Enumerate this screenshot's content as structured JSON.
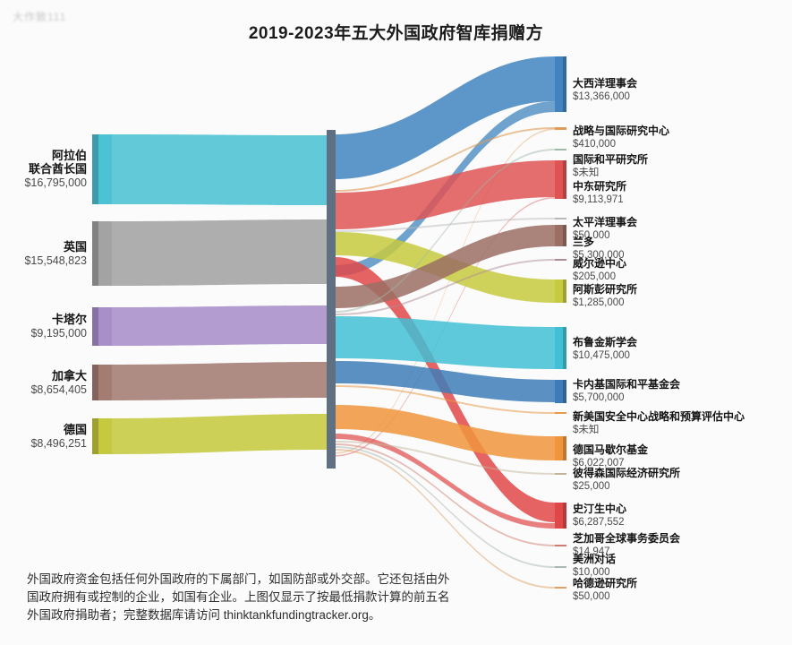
{
  "watermark": "大作致111",
  "footnote": {
    "lines": [
      "外国政府资金包括任何外国政府的下属部门，如国防部或外交部。它还包括由外",
      "国政府拥有或控制的企业，如国有企业。上图仅显示了按最低捐款计算的前五名",
      "外国政府捐助者；完整数据库请访问 thinktankfundingtracker.org。"
    ]
  },
  "chart_data": {
    "type": "sankey",
    "title": "2019-2023年五大外国政府智库捐赠方",
    "unit": "USD",
    "legend_position": "none",
    "layout_hint": "donor governments on left, unlabeled grey junction bar in middle, recipient think tanks on right; ribbons colored by donor on left half and by recipient on right half",
    "junction": {
      "label": "",
      "color": "#5e7081"
    },
    "sources": [
      {
        "id": "uae",
        "name": "阿拉伯联合酋长国",
        "name_lines": [
          "阿拉伯",
          "联合酋长国"
        ],
        "amount_label": "$16,795,000",
        "value": 16795000,
        "color": "#4cc2d4"
      },
      {
        "id": "uk",
        "name": "英国",
        "name_lines": [
          "英国"
        ],
        "amount_label": "$15,548,823",
        "value": 15548823,
        "color": "#a3a3a3"
      },
      {
        "id": "qatar",
        "name": "卡塔尔",
        "name_lines": [
          "卡塔尔"
        ],
        "amount_label": "$9,195,000",
        "value": 9195000,
        "color": "#a88fc9"
      },
      {
        "id": "canada",
        "name": "加拿大",
        "name_lines": [
          "加拿大"
        ],
        "amount_label": "$8,654,405",
        "value": 8654405,
        "color": "#a47c72"
      },
      {
        "id": "germany",
        "name": "德国",
        "name_lines": [
          "德国"
        ],
        "amount_label": "$8,496,251",
        "value": 8496251,
        "color": "#c5c93f"
      }
    ],
    "targets": [
      {
        "id": "atlantic-council",
        "name": "大西洋理事会",
        "amount_label": "$13,366,000",
        "value": 13366000,
        "color": "#4184bf"
      },
      {
        "id": "csis",
        "name": "战略与国际研究中心",
        "amount_label": "$410,000",
        "value": 410000,
        "color": "#dd9b55"
      },
      {
        "id": "international-peace-institute",
        "name": "国际和平研究所",
        "amount_label": "$未知",
        "value": null,
        "color": "#9fb8a8"
      },
      {
        "id": "middle-east-institute",
        "name": "中东研究所",
        "amount_label": "$9,113,971",
        "value": 9113971,
        "color": "#df5353"
      },
      {
        "id": "pacific-council",
        "name": "太平洋理事会",
        "amount_label": "$50,000",
        "value": 50000,
        "color": "#b9b9b9"
      },
      {
        "id": "rand",
        "name": "兰多",
        "amount_label": "$5,300,000",
        "value": 5300000,
        "color": "#9b6f64"
      },
      {
        "id": "wilson-center",
        "name": "威尔逊中心",
        "amount_label": "$205,000",
        "value": 205000,
        "color": "#ad8b93"
      },
      {
        "id": "aspen-institute",
        "name": "阿斯彭研究所",
        "amount_label": "$1,285,000",
        "value": 1285000,
        "color": "#c6ca3e"
      },
      {
        "id": "brookings",
        "name": "布鲁金斯学会",
        "amount_label": "$10,475,000",
        "value": 10475000,
        "color": "#41c0d5"
      },
      {
        "id": "carnegie-endowment",
        "name": "卡内基国际和平基金会",
        "amount_label": "$5,700,000",
        "value": 5700000,
        "color": "#3e7cb7"
      },
      {
        "id": "cnas-csba",
        "name": "新美国安全中心战略和预算评估中心",
        "amount_label": "$未知",
        "value": null,
        "color": "#e89a4a"
      },
      {
        "id": "german-marshall-fund",
        "name": "德国马歇尔基金",
        "amount_label": "$6,022,007",
        "value": 6022007,
        "color": "#f0953c"
      },
      {
        "id": "peterson-institute",
        "name": "彼得森国际经济研究所",
        "amount_label": "$25,000",
        "value": 25000,
        "color": "#c2b49a"
      },
      {
        "id": "stimson-center",
        "name": "史汀生中心",
        "amount_label": "$6,287,552",
        "value": 6287552,
        "color": "#e04848"
      },
      {
        "id": "chicago-council",
        "name": "芝加哥全球事务委员会",
        "amount_label": "$14,947",
        "value": 14947,
        "color": "#cf7d72"
      },
      {
        "id": "inter-american-dialogue",
        "name": "美洲对话",
        "amount_label": "$10,000",
        "value": 10000,
        "color": "#a8b8b0"
      },
      {
        "id": "hudson-institute",
        "name": "哈德逊研究所",
        "amount_label": "$50,000",
        "value": 50000,
        "color": "#e0a065"
      }
    ],
    "links_left": [
      {
        "source": "uae",
        "target": "junction",
        "value": 16795000
      },
      {
        "source": "uk",
        "target": "junction",
        "value": 15548823
      },
      {
        "source": "qatar",
        "target": "junction",
        "value": 9195000
      },
      {
        "source": "canada",
        "target": "junction",
        "value": 8654405
      },
      {
        "source": "germany",
        "target": "junction",
        "value": 8496251
      }
    ],
    "links_right": [
      {
        "source": "junction",
        "target": "atlantic-council",
        "value": 13366000
      },
      {
        "source": "junction",
        "target": "csis",
        "value": 410000
      },
      {
        "source": "junction",
        "target": "international-peace-institute",
        "value": null
      },
      {
        "source": "junction",
        "target": "middle-east-institute",
        "value": 9113971
      },
      {
        "source": "junction",
        "target": "pacific-council",
        "value": 50000
      },
      {
        "source": "junction",
        "target": "rand",
        "value": 5300000
      },
      {
        "source": "junction",
        "target": "wilson-center",
        "value": 205000
      },
      {
        "source": "junction",
        "target": "aspen-institute",
        "value": 1285000
      },
      {
        "source": "junction",
        "target": "brookings",
        "value": 10475000
      },
      {
        "source": "junction",
        "target": "carnegie-endowment",
        "value": 5700000
      },
      {
        "source": "junction",
        "target": "cnas-csba",
        "value": null
      },
      {
        "source": "junction",
        "target": "german-marshall-fund",
        "value": 6022007
      },
      {
        "source": "junction",
        "target": "peterson-institute",
        "value": 25000
      },
      {
        "source": "junction",
        "target": "stimson-center",
        "value": 6287552
      },
      {
        "source": "junction",
        "target": "chicago-council",
        "value": 14947
      },
      {
        "source": "junction",
        "target": "inter-american-dialogue",
        "value": 10000
      },
      {
        "source": "junction",
        "target": "hudson-institute",
        "value": 50000
      }
    ]
  }
}
